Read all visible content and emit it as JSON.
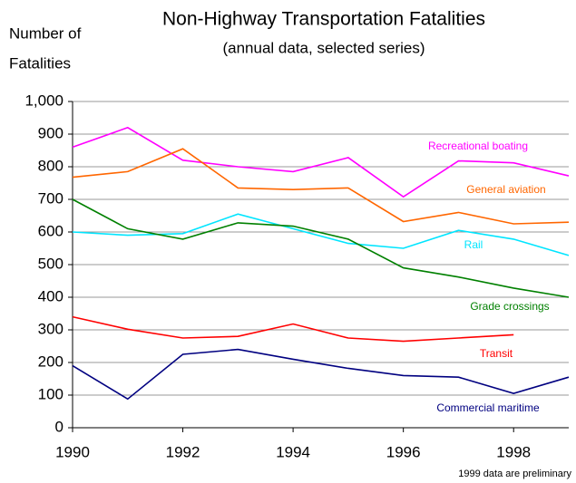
{
  "chart_data": {
    "type": "line",
    "title": "Non-Highway Transportation Fatalities",
    "subtitle": "(annual data, selected series)",
    "ylabel_lines": [
      "Number of",
      "Fatalities"
    ],
    "note": "1999 data are preliminary",
    "x": [
      1990,
      1991,
      1992,
      1993,
      1994,
      1995,
      1996,
      1997,
      1998,
      1999
    ],
    "xlim": [
      1990,
      1999
    ],
    "xticks": [
      1990,
      1992,
      1994,
      1996,
      1998
    ],
    "ylim": [
      0,
      1000
    ],
    "yticks": [
      0,
      100,
      200,
      300,
      400,
      500,
      600,
      700,
      800,
      900,
      {
        "value": 1000,
        "label": "1,000"
      }
    ],
    "grid": true,
    "series": [
      {
        "name": "Recreational boating",
        "color": "#ff00ff",
        "values": [
          860,
          920,
          820,
          800,
          785,
          828,
          708,
          818,
          812,
          772
        ]
      },
      {
        "name": "General aviation",
        "color": "#ff6600",
        "values": [
          768,
          785,
          855,
          735,
          730,
          735,
          632,
          660,
          625,
          630
        ]
      },
      {
        "name": "Rail",
        "color": "#00e5ff",
        "values": [
          600,
          590,
          595,
          655,
          610,
          565,
          550,
          605,
          578,
          528
        ]
      },
      {
        "name": "Grade crossings",
        "color": "#008000",
        "values": [
          700,
          610,
          578,
          628,
          618,
          578,
          490,
          462,
          428,
          400
        ]
      },
      {
        "name": "Transit",
        "color": "#ff0000",
        "values": [
          340,
          302,
          275,
          280,
          318,
          275,
          265,
          275,
          285,
          null
        ]
      },
      {
        "name": "Commercial maritime",
        "color": "#000080",
        "values": [
          190,
          88,
          225,
          240,
          210,
          182,
          160,
          155,
          105,
          155
        ]
      }
    ]
  }
}
